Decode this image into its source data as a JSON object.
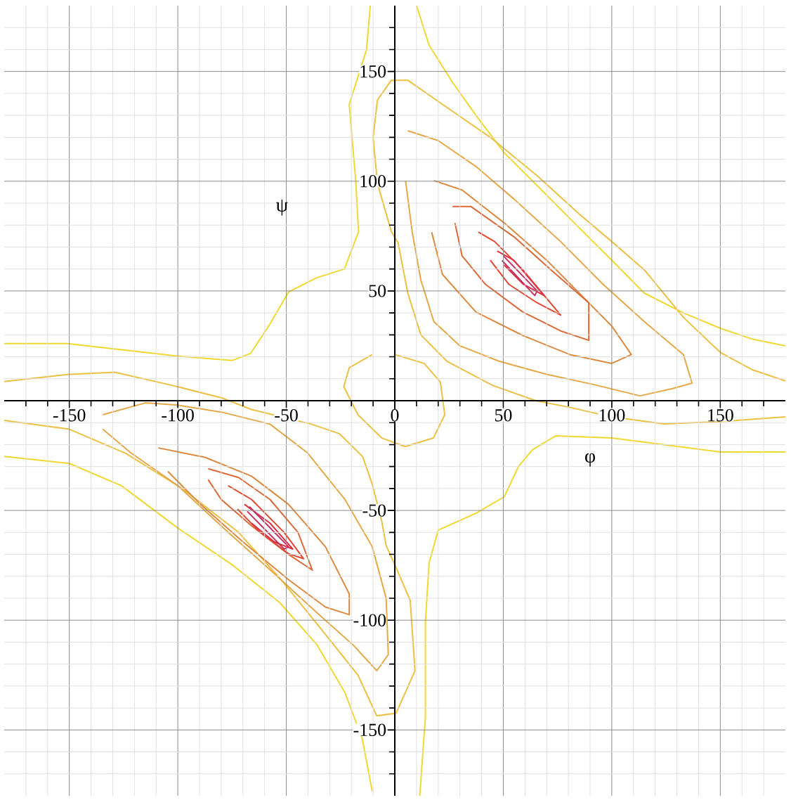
{
  "chart_data": {
    "type": "line",
    "xlabel": "φ",
    "ylabel": "ψ",
    "xlim": [
      -180,
      180
    ],
    "ylim": [
      -180,
      180
    ],
    "xticks": [
      {
        "value": -170,
        "label": null
      },
      {
        "value": -160,
        "label": null
      },
      -150,
      {
        "value": -140,
        "label": null
      },
      {
        "value": -130,
        "label": null
      },
      {
        "value": -120,
        "label": null
      },
      {
        "value": -110,
        "label": null
      },
      -100,
      {
        "value": -90,
        "label": null
      },
      {
        "value": -80,
        "label": null
      },
      {
        "value": -70,
        "label": null
      },
      {
        "value": -60,
        "label": null
      },
      -50,
      {
        "value": -40,
        "label": null
      },
      {
        "value": -30,
        "label": null
      },
      {
        "value": -20,
        "label": null
      },
      {
        "value": -10,
        "label": null
      },
      0,
      {
        "value": 10,
        "label": null
      },
      {
        "value": 20,
        "label": null
      },
      {
        "value": 30,
        "label": null
      },
      {
        "value": 40,
        "label": null
      },
      50,
      {
        "value": 60,
        "label": null
      },
      {
        "value": 70,
        "label": null
      },
      {
        "value": 80,
        "label": null
      },
      {
        "value": 90,
        "label": null
      },
      100,
      {
        "value": 110,
        "label": null
      },
      {
        "value": 120,
        "label": null
      },
      {
        "value": 130,
        "label": null
      },
      {
        "value": 140,
        "label": null
      },
      150,
      {
        "value": 160,
        "label": null
      },
      {
        "value": 170,
        "label": null
      }
    ],
    "yticks": [
      {
        "value": -170,
        "label": null
      },
      {
        "value": -160,
        "label": null
      },
      -150,
      {
        "value": -140,
        "label": null
      },
      {
        "value": -130,
        "label": null
      },
      {
        "value": -120,
        "label": null
      },
      {
        "value": -110,
        "label": null
      },
      -100,
      {
        "value": -90,
        "label": null
      },
      {
        "value": -80,
        "label": null
      },
      {
        "value": -70,
        "label": null
      },
      {
        "value": -60,
        "label": null
      },
      -50,
      {
        "value": -40,
        "label": null
      },
      {
        "value": -30,
        "label": null
      },
      {
        "value": -20,
        "label": null
      },
      {
        "value": -10,
        "label": null
      },
      {
        "value": 0,
        "label": null
      },
      {
        "value": 10,
        "label": null
      },
      {
        "value": 20,
        "label": null
      },
      {
        "value": 30,
        "label": null
      },
      {
        "value": 40,
        "label": null
      },
      50,
      {
        "value": 60,
        "label": null
      },
      {
        "value": 70,
        "label": null
      },
      {
        "value": 80,
        "label": null
      },
      {
        "value": 90,
        "label": null
      },
      100,
      {
        "value": 110,
        "label": null
      },
      {
        "value": 120,
        "label": null
      },
      {
        "value": 130,
        "label": null
      },
      {
        "value": 140,
        "label": null
      },
      150,
      {
        "value": 160,
        "label": null
      },
      {
        "value": 170,
        "label": null
      }
    ],
    "grid": true,
    "marker": "none",
    "line_style": "solid",
    "series": [
      {
        "color": "#f0d830",
        "x": [
          10,
          15.8,
          26.6,
          37.4,
          50.4,
          65.6,
          80.7,
          100,
          115,
          133,
          150,
          165,
          180
        ],
        "values": [
          180,
          162,
          145,
          130,
          113,
          98,
          83,
          64,
          49,
          40,
          33,
          28,
          25
        ]
      },
      {
        "color": "#ecc040",
        "x": [
          180,
          150,
          124,
          100,
          80.5,
          65,
          45,
          24,
          12,
          6,
          1.5,
          -1.6,
          -8,
          -10,
          -8,
          -1.6,
          6,
          22,
          44,
          65.6,
          85,
          100,
          115,
          133,
          150,
          165,
          180
        ],
        "values": [
          -7.4,
          -9.5,
          -10.6,
          -7.4,
          -3,
          0,
          7,
          18,
          30,
          49,
          72,
          77,
          99,
          120,
          137,
          146,
          146,
          135,
          120,
          102.5,
          85,
          72.5,
          59.6,
          38,
          22,
          14,
          9
        ]
      },
      {
        "color": "#e4a848",
        "x": [
          6,
          20,
          37.4,
          55,
          76.4,
          96,
          115,
          133,
          137,
          128,
          113,
          91.5,
          70,
          48,
          30,
          18,
          12,
          8,
          5
        ],
        "values": [
          123,
          118.5,
          106.7,
          91.8,
          72.5,
          53,
          36,
          21,
          8,
          5.5,
          2.2,
          7.4,
          12,
          18,
          25,
          36,
          55,
          77,
          100
        ]
      },
      {
        "color": "#dc8a40",
        "x": [
          18,
          31,
          50.4,
          70,
          87,
          100,
          109,
          100,
          80.7,
          59,
          37.4,
          22,
          17
        ],
        "values": [
          100.3,
          96,
          81,
          64,
          47,
          34,
          21,
          17,
          21,
          29.7,
          40.4,
          57.5,
          76.8
        ]
      },
      {
        "color": "#dc6a38",
        "x": [
          26.6,
          35,
          55,
          72,
          89.4,
          89.4,
          76.4,
          59,
          41.8,
          31,
          27.7
        ],
        "values": [
          88.5,
          88.5,
          74.6,
          59.6,
          44.6,
          27.5,
          31.8,
          40.4,
          53,
          66,
          81
        ]
      },
      {
        "color": "#e04830",
        "x": [
          38.5,
          46,
          59,
          76.4,
          65.6,
          52.6,
          44
        ],
        "values": [
          76.8,
          72.5,
          59.6,
          39,
          44.6,
          53,
          64
        ]
      },
      {
        "color": "#e03040",
        "x": [
          47.2,
          54.8,
          68.8,
          59,
          50.4
        ],
        "values": [
          68.2,
          64,
          47.9,
          53.2,
          61.8
        ]
      },
      {
        "color": "#c83060",
        "x": [
          50,
          65.6,
          64.5,
          49.4
        ],
        "values": [
          66,
          50,
          47.9,
          63.9
        ]
      },
      {
        "color": "#f0d830",
        "x": [
          -11.3,
          -13,
          -21,
          -18,
          -16.7,
          -23.2,
          -36,
          -49,
          -57.8,
          -66.4,
          -75,
          -101,
          -150.9,
          -180
        ],
        "values": [
          180,
          160,
          135,
          100,
          77,
          60,
          56,
          49.5,
          34.5,
          21.6,
          18.3,
          20.4,
          26,
          26
        ]
      },
      {
        "color": "#f0d830",
        "x": [
          -180,
          -150,
          -126,
          -100,
          -74.6,
          -53,
          -36,
          -23,
          -15,
          -10.4
        ],
        "values": [
          -25.4,
          -28.6,
          -38.7,
          -58,
          -75,
          -92,
          -111,
          -133,
          -154,
          -178
        ]
      },
      {
        "color": "#f0d830",
        "x": [
          11.5,
          14.1,
          14.1,
          15.8,
          20,
          37.4,
          50.4,
          57,
          63.4,
          74.2,
          100,
          150,
          180
        ],
        "values": [
          -180,
          -144,
          -101,
          -74,
          -59,
          -51.3,
          -43.8,
          -30,
          -22.4,
          -16,
          -17,
          -23.4,
          -23.4
        ]
      },
      {
        "color": "#ecc040",
        "x": [
          -180,
          -151,
          -129,
          -101,
          -79.5,
          -66,
          -38.7,
          -25.6,
          -14.8,
          -10.4,
          -6,
          -4,
          0.6,
          7.1,
          9.3,
          0.6,
          -8.3,
          -17,
          -34,
          -52,
          -72,
          -98,
          -124,
          -150,
          -180
        ],
        "values": [
          8.7,
          11.9,
          13,
          6.6,
          1.2,
          -4,
          -10.6,
          -15,
          -25.5,
          -38,
          -55,
          -66,
          -76,
          -91,
          -123,
          -142.4,
          -143.6,
          -125,
          -104,
          -82,
          -60,
          -40,
          -24,
          -13,
          -9
        ]
      },
      {
        "color": "#e4a848",
        "x": [
          -134.6,
          -115,
          -100,
          -79,
          -57.5,
          -40.4,
          -23,
          -10.4,
          -4,
          -3,
          -8.3,
          -19,
          -36,
          -57.5,
          -79,
          -100,
          -121.7,
          -134.6
        ],
        "values": [
          -6.4,
          -1,
          -2,
          -5.4,
          -10.7,
          -23.6,
          -45,
          -66.5,
          -90,
          -115.7,
          -123,
          -111.5,
          -96.5,
          -77,
          -58,
          -38.7,
          -23.7,
          -13
        ]
      },
      {
        "color": "#dc8a40",
        "x": [
          -109,
          -87.5,
          -66,
          -49,
          -32,
          -21,
          -21,
          -32,
          -49,
          -70,
          -89.6,
          -104.6
        ],
        "values": [
          -21.5,
          -25.8,
          -34.4,
          -47.2,
          -66.5,
          -88,
          -97.5,
          -94,
          -81.5,
          -64.3,
          -47.2,
          -32.2
        ]
      },
      {
        "color": "#dc6a38",
        "x": [
          -86,
          -72,
          -57.5,
          -44.6,
          -38,
          -49,
          -66,
          -80,
          -86
        ],
        "values": [
          -31,
          -35,
          -45,
          -60,
          -77.2,
          -70,
          -57,
          -45,
          -36
        ]
      },
      {
        "color": "#e04830",
        "x": [
          -76.8,
          -66,
          -51,
          -42,
          -49,
          -62,
          -72.5
        ],
        "values": [
          -38.7,
          -45,
          -60,
          -72,
          -69.7,
          -60,
          -49.4
        ]
      },
      {
        "color": "#e03040",
        "x": [
          -69.3,
          -57.5,
          -47,
          -55.6,
          -66
        ],
        "values": [
          -47.2,
          -55.8,
          -67.6,
          -64.3,
          -55.8
        ]
      },
      {
        "color": "#c83060",
        "x": [
          -67,
          -49,
          -51,
          -68
        ],
        "values": [
          -48.3,
          -66.5,
          -67.6,
          -50.4
        ]
      },
      {
        "color": "#ecc040",
        "x": [
          0,
          13.5,
          21,
          23,
          17.8,
          4.8,
          -6,
          -17,
          -23.5,
          -21,
          -10.4
        ],
        "values": [
          21,
          17,
          8.5,
          -6.4,
          -17,
          -20.9,
          -17,
          -6.4,
          6.4,
          15,
          21
        ]
      }
    ]
  }
}
